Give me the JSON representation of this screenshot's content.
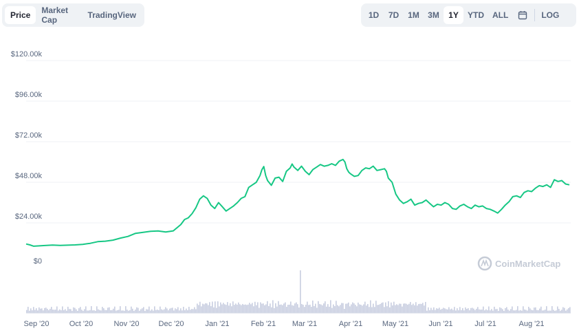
{
  "tabs": {
    "items": [
      {
        "label": "Price",
        "active": true
      },
      {
        "label": "Market Cap",
        "active": false
      },
      {
        "label": "TradingView",
        "active": false
      }
    ]
  },
  "ranges": {
    "items": [
      {
        "label": "1D",
        "active": false
      },
      {
        "label": "7D",
        "active": false
      },
      {
        "label": "1M",
        "active": false
      },
      {
        "label": "3M",
        "active": false
      },
      {
        "label": "1Y",
        "active": true
      },
      {
        "label": "YTD",
        "active": false
      },
      {
        "label": "ALL",
        "active": false
      }
    ],
    "calendar_icon": "calendar-icon",
    "log_label": "LOG"
  },
  "watermark": "CoinMarketCap",
  "colors": {
    "line": "#16c784",
    "grid": "#eff2f5",
    "volume": "#c7cde0",
    "axis_text": "#58667e"
  },
  "chart_data": {
    "type": "line",
    "yticks": [
      "$120.00k",
      "$96.00k",
      "$72.00k",
      "$48.00k",
      "$24.00k",
      "$0"
    ],
    "ylim": [
      0,
      120000
    ],
    "xticks": [
      "Sep '20",
      "Oct '20",
      "Nov '20",
      "Dec '20",
      "Jan '21",
      "Feb '21",
      "Mar '21",
      "Apr '21",
      "May '21",
      "Jun '21",
      "Jul '21",
      "Aug '21"
    ],
    "series": [
      {
        "values": [
          [
            0,
            11500
          ],
          [
            2,
            11000
          ],
          [
            4,
            10200
          ],
          [
            7,
            10400
          ],
          [
            10,
            10600
          ],
          [
            14,
            10900
          ],
          [
            18,
            10700
          ],
          [
            22,
            10800
          ],
          [
            26,
            11000
          ],
          [
            30,
            11300
          ],
          [
            34,
            11900
          ],
          [
            38,
            12900
          ],
          [
            42,
            13200
          ],
          [
            46,
            13800
          ],
          [
            50,
            15000
          ],
          [
            54,
            16000
          ],
          [
            58,
            17800
          ],
          [
            62,
            18400
          ],
          [
            66,
            19000
          ],
          [
            70,
            19200
          ],
          [
            74,
            18600
          ],
          [
            78,
            19300
          ],
          [
            82,
            23000
          ],
          [
            84,
            26000
          ],
          [
            86,
            27000
          ],
          [
            88,
            29500
          ],
          [
            90,
            33000
          ],
          [
            92,
            38000
          ],
          [
            94,
            40000
          ],
          [
            96,
            38500
          ],
          [
            98,
            34500
          ],
          [
            100,
            32500
          ],
          [
            102,
            36000
          ],
          [
            104,
            33500
          ],
          [
            106,
            31000
          ],
          [
            108,
            32500
          ],
          [
            110,
            34000
          ],
          [
            112,
            36000
          ],
          [
            114,
            38500
          ],
          [
            116,
            39500
          ],
          [
            118,
            45000
          ],
          [
            120,
            46500
          ],
          [
            122,
            48000
          ],
          [
            124,
            52000
          ],
          [
            125,
            55500
          ],
          [
            126,
            57300
          ],
          [
            127,
            52000
          ],
          [
            128,
            49000
          ],
          [
            130,
            46200
          ],
          [
            132,
            50500
          ],
          [
            134,
            51000
          ],
          [
            136,
            48500
          ],
          [
            138,
            54500
          ],
          [
            140,
            56500
          ],
          [
            141,
            58800
          ],
          [
            142,
            57000
          ],
          [
            144,
            55000
          ],
          [
            146,
            57500
          ],
          [
            148,
            54500
          ],
          [
            150,
            52500
          ],
          [
            152,
            55500
          ],
          [
            154,
            57000
          ],
          [
            156,
            58500
          ],
          [
            158,
            57500
          ],
          [
            160,
            58000
          ],
          [
            162,
            59000
          ],
          [
            164,
            58000
          ],
          [
            166,
            60500
          ],
          [
            168,
            61500
          ],
          [
            169,
            60000
          ],
          [
            170,
            56000
          ],
          [
            171,
            54000
          ],
          [
            172,
            53000
          ],
          [
            174,
            51500
          ],
          [
            176,
            52000
          ],
          [
            178,
            55000
          ],
          [
            180,
            56500
          ],
          [
            182,
            56000
          ],
          [
            184,
            57500
          ],
          [
            186,
            55000
          ],
          [
            188,
            55500
          ],
          [
            190,
            56000
          ],
          [
            191,
            54500
          ],
          [
            192,
            50500
          ],
          [
            194,
            48000
          ],
          [
            196,
            41000
          ],
          [
            198,
            37500
          ],
          [
            200,
            35500
          ],
          [
            202,
            36500
          ],
          [
            204,
            38000
          ],
          [
            206,
            34500
          ],
          [
            208,
            35500
          ],
          [
            210,
            36000
          ],
          [
            212,
            37500
          ],
          [
            214,
            35500
          ],
          [
            216,
            33500
          ],
          [
            218,
            35000
          ],
          [
            220,
            34500
          ],
          [
            222,
            36000
          ],
          [
            224,
            35000
          ],
          [
            226,
            32500
          ],
          [
            228,
            32000
          ],
          [
            230,
            34000
          ],
          [
            232,
            35000
          ],
          [
            234,
            33500
          ],
          [
            236,
            32500
          ],
          [
            238,
            34500
          ],
          [
            240,
            33500
          ],
          [
            242,
            34000
          ],
          [
            244,
            32500
          ],
          [
            246,
            32000
          ],
          [
            248,
            31000
          ],
          [
            250,
            29800
          ],
          [
            252,
            32000
          ],
          [
            254,
            34500
          ],
          [
            256,
            36500
          ],
          [
            258,
            39500
          ],
          [
            260,
            40000
          ],
          [
            262,
            39000
          ],
          [
            264,
            42000
          ],
          [
            266,
            43000
          ],
          [
            268,
            42500
          ],
          [
            270,
            44500
          ],
          [
            272,
            46000
          ],
          [
            274,
            45500
          ],
          [
            276,
            46500
          ],
          [
            278,
            45000
          ],
          [
            280,
            49500
          ],
          [
            282,
            48500
          ],
          [
            284,
            49000
          ],
          [
            286,
            47000
          ],
          [
            288,
            46500
          ]
        ]
      }
    ],
    "grid": true
  }
}
